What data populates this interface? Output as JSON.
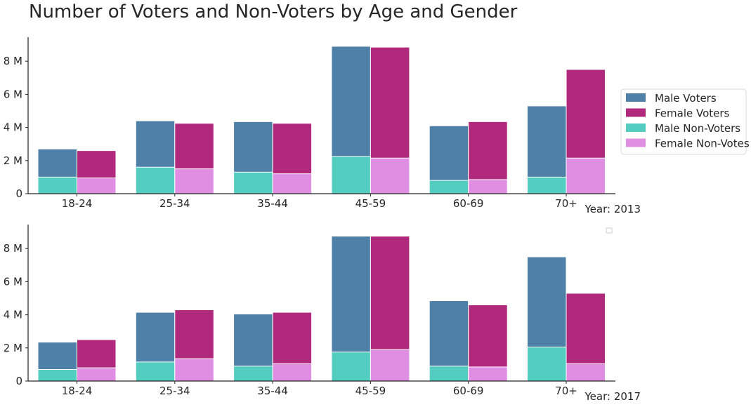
{
  "chart_data": {
    "type": "bar",
    "title": "Number of Voters and Non-Voters by Age and Gender",
    "categories": [
      "18-24",
      "25-34",
      "35-44",
      "45-59",
      "60-69",
      "70+"
    ],
    "yticks": [
      "0",
      "2 M",
      "4 M",
      "6 M",
      "8 M"
    ],
    "ylim": [
      0,
      9.3
    ],
    "legend": {
      "placement": "right",
      "entries": [
        {
          "name": "Male Voters",
          "color": "#4f81a8"
        },
        {
          "name": "Female Voters",
          "color": "#b0297c"
        },
        {
          "name": "Male Non-Voters",
          "color": "#53cdc0"
        },
        {
          "name": "Female Non-Votes",
          "color": "#e08ee2"
        }
      ]
    },
    "panels": [
      {
        "label": "Year: 2013",
        "male_voters": [
          2.7,
          4.4,
          4.35,
          8.9,
          4.1,
          5.3
        ],
        "female_voters": [
          2.6,
          4.25,
          4.25,
          8.85,
          4.35,
          7.5
        ],
        "male_non_voters": [
          1.0,
          1.6,
          1.3,
          2.25,
          0.8,
          1.0
        ],
        "female_non_voters": [
          0.95,
          1.5,
          1.2,
          2.15,
          0.85,
          2.15
        ]
      },
      {
        "label": "Year: 2017",
        "male_voters": [
          2.35,
          4.15,
          4.05,
          8.75,
          4.85,
          7.5
        ],
        "female_voters": [
          2.5,
          4.3,
          4.15,
          8.75,
          4.6,
          5.3
        ],
        "male_non_voters": [
          0.7,
          1.15,
          0.9,
          1.75,
          0.9,
          2.05
        ],
        "female_non_voters": [
          0.8,
          1.35,
          1.05,
          1.9,
          0.85,
          1.05
        ]
      }
    ]
  }
}
